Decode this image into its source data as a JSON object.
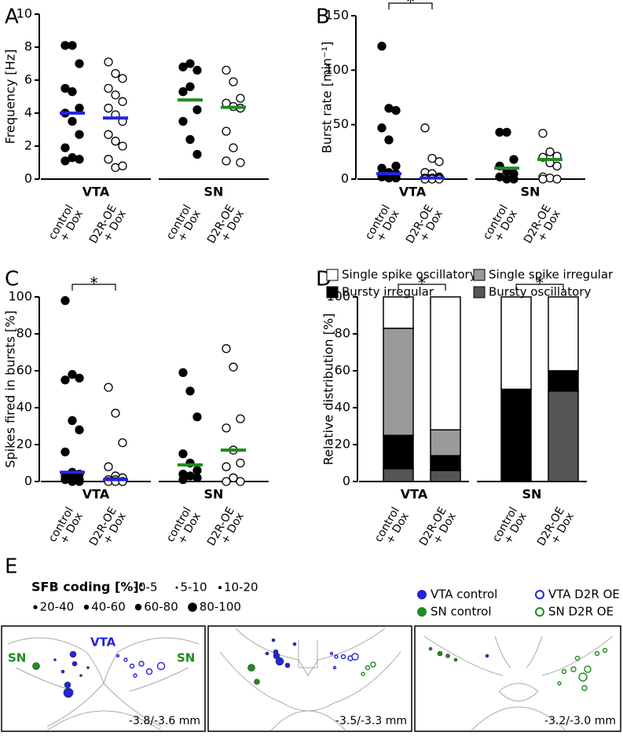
{
  "chart_data": [
    {
      "type": "strip",
      "label": "A",
      "ylabel": "Frequency [Hz]",
      "ylim": [
        0,
        10
      ],
      "yticks": [
        0,
        2,
        4,
        6,
        8,
        10
      ],
      "conditions": [
        [
          "control",
          "+ Dox"
        ],
        [
          "D2R-OE",
          "+ Dox"
        ]
      ],
      "groups": [
        {
          "name": "VTA",
          "mean_color": "#2424dc",
          "series": [
            {
              "fill": "#000000",
              "mean": 4.0,
              "values": [
                8.1,
                8.1,
                7.0,
                5.5,
                5.3,
                4.3,
                4.0,
                3.5,
                2.7,
                1.9,
                1.3,
                1.2,
                1.1
              ]
            },
            {
              "fill": "#ffffff",
              "mean": 3.7,
              "values": [
                7.1,
                6.4,
                6.1,
                5.5,
                5.1,
                4.7,
                4.3,
                3.9,
                3.5,
                2.7,
                2.3,
                2.0,
                1.2,
                0.7,
                0.8
              ]
            }
          ]
        },
        {
          "name": "SN",
          "mean_color": "#1e8c1e",
          "series": [
            {
              "fill": "#000000",
              "mean": 4.8,
              "values": [
                6.8,
                7.0,
                6.6,
                5.3,
                5.6,
                4.2,
                3.5,
                2.4,
                1.5
              ]
            },
            {
              "fill": "#ffffff",
              "mean": 4.35,
              "values": [
                6.6,
                5.9,
                4.9,
                4.6,
                4.4,
                4.3,
                2.9,
                1.9,
                1.0,
                1.1
              ]
            }
          ]
        }
      ]
    },
    {
      "type": "strip",
      "label": "B",
      "ylabel": "Burst rate [min⁻¹]",
      "ylim": [
        0,
        150
      ],
      "yticks": [
        0,
        50,
        100,
        150
      ],
      "conditions": [
        [
          "control",
          "+ Dox"
        ],
        [
          "D2R-OE",
          "+ Dox"
        ]
      ],
      "groups": [
        {
          "name": "VTA",
          "mean_color": "#2424dc",
          "significance": "*",
          "series": [
            {
              "fill": "#000000",
              "mean": 5,
              "values": [
                122,
                65,
                63,
                47,
                36,
                12,
                10,
                6,
                5,
                4,
                3,
                2,
                2,
                1,
                1
              ]
            },
            {
              "fill": "#ffffff",
              "mean": 1,
              "values": [
                47,
                19,
                16,
                6,
                5,
                2,
                1,
                1,
                1,
                0,
                0,
                0,
                0
              ]
            }
          ]
        },
        {
          "name": "SN",
          "mean_color": "#1e8c1e",
          "series": [
            {
              "fill": "#000000",
              "mean": 10,
              "values": [
                43,
                43,
                18,
                12,
                7,
                5,
                2,
                0,
                0
              ]
            },
            {
              "fill": "#ffffff",
              "mean": 18,
              "values": [
                42,
                25,
                21,
                20,
                15,
                12,
                2,
                1,
                0,
                0
              ]
            }
          ]
        }
      ]
    },
    {
      "type": "strip",
      "label": "C",
      "ylabel": "Spikes fired in bursts [%]",
      "ylim": [
        0,
        100
      ],
      "yticks": [
        0,
        20,
        40,
        60,
        80,
        100
      ],
      "conditions": [
        [
          "control",
          "+ Dox"
        ],
        [
          "D2R-OE",
          "+ Dox"
        ]
      ],
      "groups": [
        {
          "name": "VTA",
          "mean_color": "#2424dc",
          "significance": "*",
          "series": [
            {
              "fill": "#000000",
              "mean": 5,
              "values": [
                98,
                58,
                56,
                55,
                33,
                28,
                16,
                5,
                4,
                3,
                2,
                1,
                1,
                0,
                0
              ]
            },
            {
              "fill": "#ffffff",
              "mean": 1,
              "values": [
                51,
                37,
                21,
                8,
                3,
                2,
                1,
                1,
                0,
                0,
                0,
                0
              ]
            }
          ]
        },
        {
          "name": "SN",
          "mean_color": "#1e8c1e",
          "series": [
            {
              "fill": "#000000",
              "mean": 9,
              "values": [
                59,
                49,
                35,
                15,
                10,
                6,
                4,
                3,
                2,
                1
              ]
            },
            {
              "fill": "#ffffff",
              "mean": 17,
              "values": [
                72,
                62,
                34,
                29,
                17,
                10,
                8,
                2,
                0,
                0
              ]
            }
          ]
        }
      ]
    },
    {
      "type": "stacked_bar",
      "label": "D",
      "ylabel": "Relative distribution [%]",
      "ylim": [
        0,
        100
      ],
      "yticks": [
        0,
        20,
        40,
        60,
        80,
        100
      ],
      "conditions": [
        [
          "control",
          "+ Dox"
        ],
        [
          "D2R-OE",
          "+ Dox"
        ]
      ],
      "groups": [
        {
          "name": "VTA",
          "significance": "*"
        },
        {
          "name": "SN",
          "significance": "*"
        }
      ],
      "series": [
        {
          "name": "Single spike oscillatory",
          "color": "#ffffff",
          "values": [
            17,
            72,
            50,
            40
          ]
        },
        {
          "name": "Single spike irregular",
          "color": "#9a9a9a",
          "values": [
            58,
            14,
            0,
            0
          ]
        },
        {
          "name": "Bursty irregular",
          "color": "#000000",
          "values": [
            18,
            8,
            50,
            11
          ]
        },
        {
          "name": "Bursty oscillatory",
          "color": "#555555",
          "values": [
            7,
            6,
            0,
            49
          ]
        }
      ]
    }
  ],
  "panel_e": {
    "label": "E",
    "title": "SFB coding [%]:",
    "size_classes": [
      "0-5",
      "5-10",
      "10-20",
      "20-40",
      "40-60",
      "60-80",
      "80-100"
    ],
    "legend": [
      "VTA control",
      "VTA D2R OE",
      "SN control",
      "SN D2R OE"
    ],
    "region_labels": [
      "SN",
      "VTA",
      "SN"
    ],
    "sections": [
      "-3.8/-3.6 mm",
      "-3.5/-3.3 mm",
      "-3.2/-3.0 mm"
    ]
  }
}
